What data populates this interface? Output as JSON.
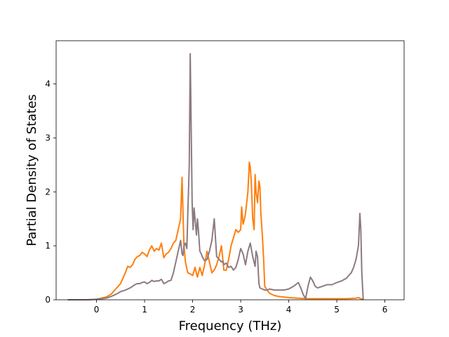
{
  "chart_data": {
    "type": "line",
    "title": "",
    "xlabel": "Frequency (THz)",
    "ylabel": "Partial Density of States",
    "xlim": [
      -0.84,
      6.4
    ],
    "ylim": [
      0,
      4.8
    ],
    "xticks": [
      0,
      1,
      2,
      3,
      4,
      5,
      6
    ],
    "yticks": [
      0,
      1,
      2,
      3,
      4
    ],
    "grid": false,
    "legend": "none",
    "series": [
      {
        "color": "#ff7f0e",
        "x": [
          -0.6,
          -0.2,
          0.0,
          0.2,
          0.3,
          0.4,
          0.5,
          0.6,
          0.65,
          0.7,
          0.75,
          0.8,
          0.85,
          0.9,
          0.95,
          1.0,
          1.05,
          1.1,
          1.15,
          1.2,
          1.25,
          1.3,
          1.35,
          1.4,
          1.45,
          1.5,
          1.55,
          1.6,
          1.65,
          1.7,
          1.75,
          1.78,
          1.8,
          1.82,
          1.85,
          1.9,
          1.95,
          2.0,
          2.05,
          2.1,
          2.15,
          2.2,
          2.25,
          2.3,
          2.35,
          2.4,
          2.45,
          2.5,
          2.55,
          2.6,
          2.65,
          2.7,
          2.75,
          2.8,
          2.85,
          2.9,
          2.95,
          3.0,
          3.02,
          3.05,
          3.08,
          3.1,
          3.15,
          3.18,
          3.2,
          3.22,
          3.25,
          3.28,
          3.3,
          3.32,
          3.35,
          3.38,
          3.4,
          3.42,
          3.45,
          3.48,
          3.5,
          3.55,
          3.6,
          3.7,
          3.8,
          4.0,
          4.2,
          4.4,
          4.6,
          4.8,
          5.0,
          5.2,
          5.4,
          5.45,
          5.5,
          5.53,
          5.55
        ],
        "y": [
          0,
          0,
          0.01,
          0.05,
          0.1,
          0.2,
          0.3,
          0.5,
          0.62,
          0.6,
          0.65,
          0.75,
          0.8,
          0.82,
          0.88,
          0.85,
          0.8,
          0.92,
          1.0,
          0.9,
          0.95,
          0.92,
          1.05,
          0.78,
          0.85,
          0.88,
          0.95,
          1.05,
          1.1,
          1.3,
          1.5,
          2.27,
          1.6,
          1.0,
          0.7,
          0.5,
          0.48,
          0.45,
          0.6,
          0.42,
          0.6,
          0.45,
          0.65,
          0.9,
          0.7,
          0.5,
          0.55,
          0.65,
          0.8,
          1.0,
          0.55,
          0.55,
          0.75,
          1.0,
          1.15,
          1.3,
          1.25,
          1.3,
          1.72,
          1.4,
          1.5,
          1.6,
          2.0,
          2.55,
          2.45,
          2.2,
          1.5,
          1.3,
          2.32,
          2.0,
          1.8,
          2.2,
          2.1,
          1.6,
          1.2,
          0.7,
          0.25,
          0.18,
          0.12,
          0.08,
          0.06,
          0.04,
          0.03,
          0.02,
          0.02,
          0.02,
          0.02,
          0.02,
          0.03,
          0.04,
          0.02,
          0.01,
          0
        ]
      },
      {
        "color": "#8c7b80",
        "x": [
          -0.6,
          -0.2,
          0.0,
          0.2,
          0.3,
          0.4,
          0.5,
          0.6,
          0.65,
          0.7,
          0.75,
          0.8,
          0.85,
          0.9,
          0.95,
          1.0,
          1.05,
          1.1,
          1.15,
          1.2,
          1.25,
          1.3,
          1.35,
          1.4,
          1.45,
          1.5,
          1.55,
          1.6,
          1.65,
          1.7,
          1.75,
          1.78,
          1.8,
          1.82,
          1.85,
          1.88,
          1.9,
          1.93,
          1.95,
          1.97,
          1.99,
          2.01,
          2.03,
          2.05,
          2.08,
          2.1,
          2.12,
          2.15,
          2.18,
          2.2,
          2.25,
          2.3,
          2.35,
          2.4,
          2.45,
          2.5,
          2.55,
          2.6,
          2.63,
          2.65,
          2.7,
          2.75,
          2.8,
          2.85,
          2.9,
          2.95,
          3.0,
          3.05,
          3.1,
          3.15,
          3.2,
          3.25,
          3.3,
          3.32,
          3.35,
          3.38,
          3.4,
          3.45,
          3.5,
          3.55,
          3.6,
          3.7,
          3.8,
          3.9,
          4.0,
          4.1,
          4.2,
          4.25,
          4.3,
          4.35,
          4.4,
          4.45,
          4.5,
          4.55,
          4.6,
          4.7,
          4.8,
          4.9,
          5.0,
          5.1,
          5.2,
          5.3,
          5.35,
          5.4,
          5.45,
          5.48,
          5.5,
          5.52,
          5.55
        ],
        "y": [
          0,
          0,
          0.01,
          0.03,
          0.06,
          0.1,
          0.15,
          0.18,
          0.2,
          0.22,
          0.25,
          0.28,
          0.3,
          0.3,
          0.32,
          0.33,
          0.3,
          0.32,
          0.36,
          0.34,
          0.35,
          0.35,
          0.38,
          0.3,
          0.32,
          0.35,
          0.36,
          0.5,
          0.7,
          0.9,
          1.1,
          0.85,
          0.82,
          1.0,
          1.05,
          0.95,
          1.6,
          2.5,
          4.56,
          3.2,
          1.8,
          1.3,
          1.7,
          1.5,
          1.2,
          1.5,
          1.3,
          0.9,
          0.85,
          0.8,
          0.72,
          0.75,
          0.9,
          1.1,
          1.5,
          0.8,
          0.75,
          0.7,
          0.72,
          0.65,
          0.68,
          0.6,
          0.62,
          0.55,
          0.6,
          0.75,
          0.95,
          0.85,
          0.65,
          0.9,
          1.05,
          0.8,
          0.62,
          0.9,
          0.8,
          0.3,
          0.22,
          0.2,
          0.18,
          0.18,
          0.2,
          0.18,
          0.18,
          0.18,
          0.2,
          0.25,
          0.32,
          0.22,
          0.1,
          0.02,
          0.25,
          0.42,
          0.35,
          0.25,
          0.22,
          0.25,
          0.28,
          0.28,
          0.32,
          0.35,
          0.4,
          0.5,
          0.6,
          0.75,
          1.0,
          1.6,
          1.3,
          0.5,
          0
        ]
      }
    ]
  }
}
